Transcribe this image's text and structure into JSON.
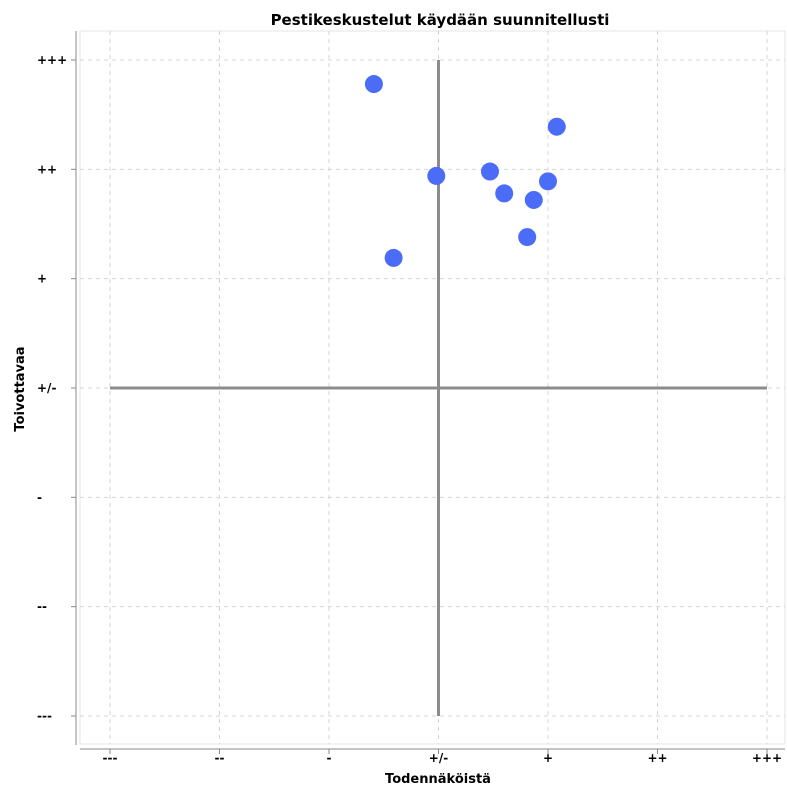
{
  "chart_data": {
    "type": "scatter",
    "title": "Pestikeskustelut käydään suunnitellusti",
    "xlabel": "Todennäköistä",
    "ylabel": "Toivottavaa",
    "x_tick_labels": [
      "---",
      "--",
      "-",
      "+/-",
      "+",
      "++",
      "+++"
    ],
    "y_tick_labels": [
      "---",
      "--",
      "-",
      "+/-",
      "+",
      "++",
      "+++"
    ],
    "xlim": [
      -3,
      3
    ],
    "ylim": [
      -3,
      3
    ],
    "grid": true,
    "quadrant_lines_at": [
      0,
      0
    ],
    "marker_color": "#4a6cf7",
    "points": [
      {
        "x": -0.59,
        "y": 2.78
      },
      {
        "x": 1.08,
        "y": 2.39
      },
      {
        "x": -0.02,
        "y": 1.94
      },
      {
        "x": 0.47,
        "y": 1.98
      },
      {
        "x": 0.6,
        "y": 1.78
      },
      {
        "x": 1.0,
        "y": 1.89
      },
      {
        "x": 0.87,
        "y": 1.72
      },
      {
        "x": 0.81,
        "y": 1.38
      },
      {
        "x": -0.41,
        "y": 1.19
      }
    ]
  }
}
